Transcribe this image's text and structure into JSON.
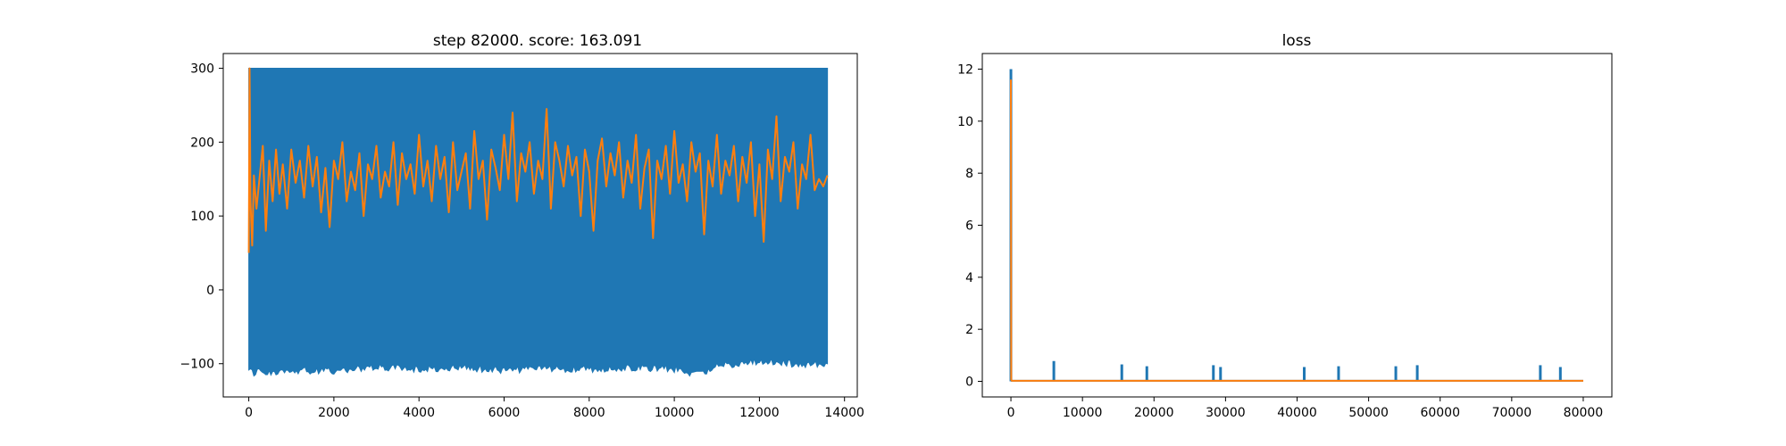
{
  "colors": {
    "series1": "#1f77b4",
    "series2": "#ff7f0e",
    "axes": "#000000",
    "background": "#ffffff"
  },
  "chart_data": [
    {
      "type": "line",
      "title": "step 82000. score: 163.091",
      "xlabel": "",
      "ylabel": "",
      "xlim": [
        -600,
        14300
      ],
      "ylim": [
        -145,
        320
      ],
      "xticks": [
        0,
        2000,
        4000,
        6000,
        8000,
        10000,
        12000,
        14000
      ],
      "yticks": [
        -100,
        0,
        100,
        200,
        300
      ],
      "xtick_labels": [
        "0",
        "2000",
        "4000",
        "6000",
        "8000",
        "10000",
        "12000",
        "14000"
      ],
      "ytick_labels": [
        "−100",
        "0",
        "100",
        "200",
        "300"
      ],
      "grid": false,
      "series": [
        {
          "color": "#1f77b4",
          "style": "dense oscillation filling band between min and max",
          "x_range": [
            0,
            13600
          ],
          "upper_envelope": [
            [
              0,
              300
            ],
            [
              13600,
              300
            ]
          ],
          "lower_envelope": [
            [
              0,
              -115
            ],
            [
              1000,
              -112
            ],
            [
              2000,
              -113
            ],
            [
              3000,
              -108
            ],
            [
              4000,
              -110
            ],
            [
              5000,
              -108
            ],
            [
              6000,
              -112
            ],
            [
              7000,
              -110
            ],
            [
              8000,
              -110
            ],
            [
              9000,
              -108
            ],
            [
              10000,
              -110
            ],
            [
              10600,
              -118
            ],
            [
              11000,
              -106
            ],
            [
              12000,
              -100
            ],
            [
              13000,
              -104
            ],
            [
              13600,
              -103
            ]
          ]
        },
        {
          "color": "#ff7f0e",
          "style": "noisy line",
          "x": [
            0,
            20,
            40,
            80,
            120,
            180,
            250,
            330,
            400,
            480,
            560,
            640,
            720,
            800,
            900,
            1000,
            1100,
            1200,
            1300,
            1400,
            1500,
            1600,
            1700,
            1800,
            1900,
            2000,
            2100,
            2200,
            2300,
            2400,
            2500,
            2600,
            2700,
            2800,
            2900,
            3000,
            3100,
            3200,
            3300,
            3400,
            3500,
            3600,
            3700,
            3800,
            3900,
            4000,
            4100,
            4200,
            4300,
            4400,
            4500,
            4600,
            4700,
            4800,
            4900,
            5000,
            5100,
            5200,
            5300,
            5400,
            5500,
            5600,
            5700,
            5800,
            5900,
            6000,
            6100,
            6200,
            6300,
            6400,
            6500,
            6600,
            6700,
            6800,
            6900,
            7000,
            7100,
            7200,
            7300,
            7400,
            7500,
            7600,
            7700,
            7800,
            7900,
            8000,
            8100,
            8200,
            8300,
            8400,
            8500,
            8600,
            8700,
            8800,
            8900,
            9000,
            9100,
            9200,
            9300,
            9400,
            9500,
            9600,
            9700,
            9800,
            9900,
            10000,
            10100,
            10200,
            10300,
            10400,
            10500,
            10600,
            10700,
            10800,
            10900,
            11000,
            11100,
            11200,
            11300,
            11400,
            11500,
            11600,
            11700,
            11800,
            11900,
            12000,
            12100,
            12200,
            12300,
            12400,
            12500,
            12600,
            12700,
            12800,
            12900,
            13000,
            13100,
            13200,
            13300,
            13400,
            13500,
            13600
          ],
          "y": [
            50,
            300,
            120,
            60,
            155,
            110,
            150,
            195,
            80,
            175,
            120,
            190,
            130,
            170,
            110,
            190,
            145,
            175,
            125,
            195,
            140,
            180,
            105,
            165,
            85,
            175,
            150,
            200,
            120,
            160,
            135,
            185,
            100,
            170,
            150,
            195,
            125,
            160,
            140,
            200,
            115,
            185,
            150,
            170,
            130,
            210,
            140,
            175,
            120,
            195,
            150,
            180,
            105,
            200,
            135,
            160,
            185,
            110,
            215,
            150,
            175,
            95,
            190,
            165,
            135,
            210,
            150,
            240,
            120,
            185,
            160,
            200,
            130,
            175,
            150,
            245,
            110,
            200,
            175,
            140,
            195,
            155,
            180,
            100,
            190,
            160,
            80,
            175,
            205,
            140,
            185,
            155,
            200,
            125,
            175,
            145,
            210,
            110,
            165,
            190,
            70,
            175,
            150,
            195,
            130,
            215,
            145,
            170,
            120,
            200,
            160,
            185,
            75,
            175,
            140,
            210,
            130,
            175,
            155,
            195,
            120,
            180,
            145,
            200,
            100,
            170,
            65,
            190,
            150,
            235,
            120,
            180,
            160,
            200,
            110,
            170,
            150,
            210,
            135,
            150,
            140,
            155
          ]
        }
      ]
    },
    {
      "type": "line",
      "title": "loss",
      "xlabel": "",
      "ylabel": "",
      "xlim": [
        -4000,
        84000
      ],
      "ylim": [
        -0.6,
        12.6
      ],
      "xticks": [
        0,
        10000,
        20000,
        30000,
        40000,
        50000,
        60000,
        70000,
        80000
      ],
      "yticks": [
        0,
        2,
        4,
        6,
        8,
        10,
        12
      ],
      "xtick_labels": [
        "0",
        "10000",
        "20000",
        "30000",
        "40000",
        "50000",
        "60000",
        "70000",
        "80000"
      ],
      "ytick_labels": [
        "0",
        "2",
        "4",
        "6",
        "8",
        "10",
        "12"
      ],
      "grid": false,
      "series": [
        {
          "color": "#1f77b4",
          "style": "baseline near 0 with spikes",
          "baseline": [
            [
              0,
              0.02
            ],
            [
              80000,
              0.02
            ]
          ],
          "spikes": [
            [
              0,
              12.0
            ],
            [
              6000,
              0.78
            ],
            [
              15500,
              0.65
            ],
            [
              19000,
              0.58
            ],
            [
              28300,
              0.62
            ],
            [
              29300,
              0.55
            ],
            [
              41000,
              0.55
            ],
            [
              45800,
              0.58
            ],
            [
              53800,
              0.58
            ],
            [
              56800,
              0.62
            ],
            [
              74000,
              0.62
            ],
            [
              76800,
              0.55
            ]
          ]
        },
        {
          "color": "#ff7f0e",
          "style": "line",
          "x": [
            0,
            50,
            150,
            80000
          ],
          "y": [
            11.6,
            0.05,
            0.02,
            0.02
          ]
        }
      ]
    }
  ]
}
